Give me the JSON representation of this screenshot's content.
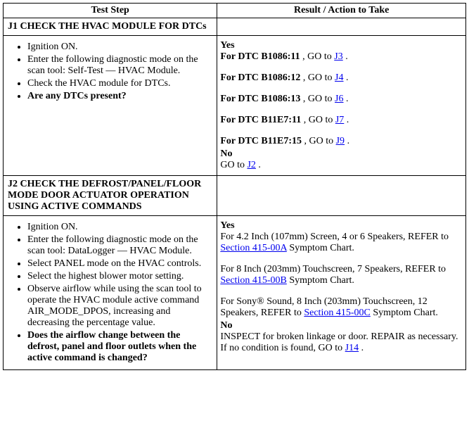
{
  "headers": {
    "col1": "Test Step",
    "col2": "Result / Action to Take"
  },
  "j1": {
    "title": "J1 CHECK THE HVAC MODULE FOR DTCs",
    "steps": [
      {
        "text": "Ignition ON."
      },
      {
        "text": "Enter the following diagnostic mode on the scan tool: Self-Test — HVAC Module."
      },
      {
        "text": "Check the HVAC module for DTCs."
      },
      {
        "text": "Are any DTCs present?",
        "bold": true
      }
    ],
    "yes_label": "Yes",
    "results": [
      {
        "prefix": "For DTC B1086:11 ",
        "mid": ", GO to ",
        "link": "J3",
        "suffix": " ."
      },
      {
        "prefix": "For DTC B1086:12 ",
        "mid": ", GO to ",
        "link": "J4",
        "suffix": " ."
      },
      {
        "prefix": "For DTC B1086:13 ",
        "mid": ", GO to ",
        "link": "J6",
        "suffix": " ."
      },
      {
        "prefix": "For DTC B11E7:11 ",
        "mid": ", GO to ",
        "link": "J7",
        "suffix": " ."
      },
      {
        "prefix": "For DTC B11E7:15 ",
        "mid": ", GO to ",
        "link": "J9",
        "suffix": " ."
      }
    ],
    "no_label": "No",
    "no_text_pre": "GO to ",
    "no_link": "J2",
    "no_text_post": " ."
  },
  "j2": {
    "title": "J2 CHECK THE DEFROST/PANEL/FLOOR MODE DOOR ACTUATOR OPERATION USING ACTIVE COMMANDS",
    "steps": [
      {
        "text": "Ignition ON."
      },
      {
        "text": "Enter the following diagnostic mode on the scan tool: DataLogger — HVAC Module."
      },
      {
        "text": "Select PANEL mode on the HVAC controls."
      },
      {
        "text": "Select the highest blower motor setting."
      },
      {
        "text": "Observe airflow while using the scan tool to operate the HVAC module active command AIR_MODE_DPOS, increasing and decreasing the percentage value."
      },
      {
        "text": "Does the airflow change between the defrost, panel and floor outlets when the active command is changed?",
        "bold": true
      }
    ],
    "yes_label": "Yes",
    "results": [
      {
        "pre": "For 4.2 Inch (107mm) Screen, 4 or 6 Speakers, REFER to ",
        "link": "Section 415-00A",
        "post": " Symptom Chart."
      },
      {
        "pre": "For 8 Inch (203mm) Touchscreen, 7 Speakers, REFER to ",
        "link": "Section 415-00B",
        "post": " Symptom Chart."
      },
      {
        "pre": "For Sony® Sound, 8 Inch (203mm) Touchscreen, 12 Speakers, REFER to ",
        "link": "Section 415-00C",
        "post": " Symptom Chart."
      }
    ],
    "no_label": "No",
    "no_pre": "INSPECT for broken linkage or door. REPAIR as necessary. If no condition is found, GO to ",
    "no_link": "J14",
    "no_post": " ."
  }
}
